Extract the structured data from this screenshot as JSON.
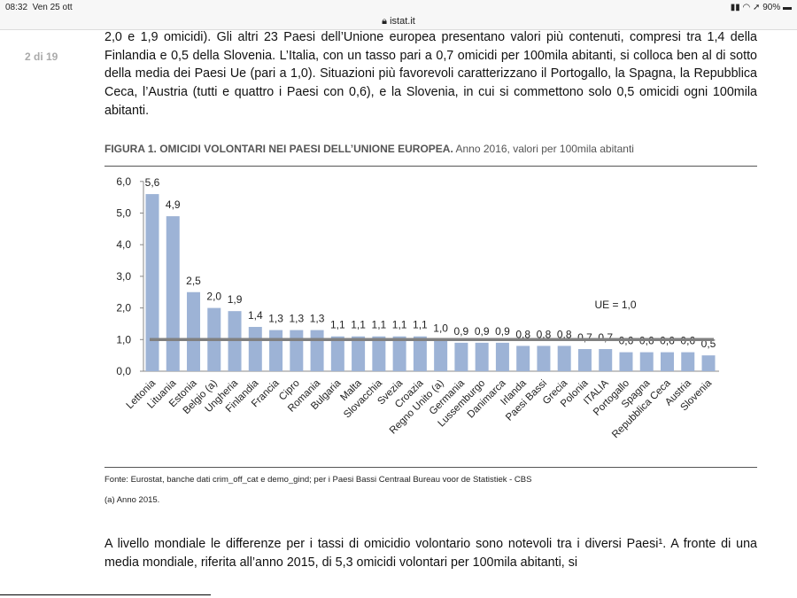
{
  "status_bar": {
    "time": "08:32",
    "date": "Ven 25 ott",
    "battery": "90%",
    "url": "istat.it"
  },
  "page_indicator": "2 di 19",
  "paragraph_top": "2,0 e 1,9 omicidi). Gli altri 23 Paesi dell’Unione europea presentano valori più contenuti, compresi tra 1,4 della Finlandia e 0,5 della Slovenia. L’Italia, con un tasso pari a 0,7 omicidi per 100mila abitanti, si colloca ben al di sotto della media dei Paesi Ue (pari a 1,0). Situazioni più favorevoli caratterizzano il Portogallo, la Spagna, la Repubblica Ceca, l’Austria (tutti e quattro i Paesi con 0,6), e la Slovenia, in cui si commettono solo 0,5 omicidi ogni 100mila abitanti.",
  "figure": {
    "title_bold": "FIGURA 1. OMICIDI VOLONTARI NEI PAESI DELL’UNIONE EUROPEA.",
    "title_rest": " Anno 2016, valori per 100mila abitanti",
    "source": "Fonte: Eurostat, banche dati crim_off_cat e demo_gind; per i Paesi Bassi Centraal Bureau voor de Statistiek - CBS",
    "note": "(a) Anno 2015."
  },
  "paragraph_bottom": "A livello mondiale le differenze per i tassi di omicidio volontario sono notevoli tra i diversi Paesi¹. A fronte di una media mondiale, riferita all’anno 2015, di 5,3 omicidi volontari per 100mila abitanti, si",
  "chart_data": {
    "type": "bar",
    "title": "Omicidi volontari nei paesi dell'Unione europea",
    "categories": [
      "Lettonia",
      "Lituania",
      "Estonia",
      "Belgio (a)",
      "Ungheria",
      "Finlandia",
      "Francia",
      "Cipro",
      "Romania",
      "Bulgaria",
      "Malta",
      "Slovacchia",
      "Svezia",
      "Croazia",
      "Regno Unito (a)",
      "Germania",
      "Lussemburgo",
      "Danimarca",
      "Irlanda",
      "Paesi Bassi",
      "Grecia",
      "Polonia",
      "ITALIA",
      "Portogallo",
      "Spagna",
      "Repubblica Ceca",
      "Austria",
      "Slovenia"
    ],
    "values": [
      5.6,
      4.9,
      2.5,
      2.0,
      1.9,
      1.4,
      1.3,
      1.3,
      1.3,
      1.1,
      1.1,
      1.1,
      1.1,
      1.1,
      1.0,
      0.9,
      0.9,
      0.9,
      0.8,
      0.8,
      0.8,
      0.7,
      0.7,
      0.6,
      0.6,
      0.6,
      0.6,
      0.5
    ],
    "labels": [
      "5,6",
      "4,9",
      "2,5",
      "2,0",
      "1,9",
      "1,4",
      "1,3",
      "1,3",
      "1,3",
      "1,1",
      "1,1",
      "1,1",
      "1,1",
      "1,1",
      "1,0",
      "0,9",
      "0,9",
      "0,9",
      "0,8",
      "0,8",
      "0,8",
      "0,7",
      "0,7",
      "0,6",
      "0,6",
      "0,6",
      "0,6",
      "0,5"
    ],
    "yticks": [
      "0,0",
      "1,0",
      "2,0",
      "3,0",
      "4,0",
      "5,0",
      "6,0"
    ],
    "ylim": [
      0,
      6
    ],
    "reference_line": {
      "value": 1.0,
      "label": "UE = 1,0"
    },
    "bar_color": "#9db3d6",
    "line_color": "#808080"
  }
}
